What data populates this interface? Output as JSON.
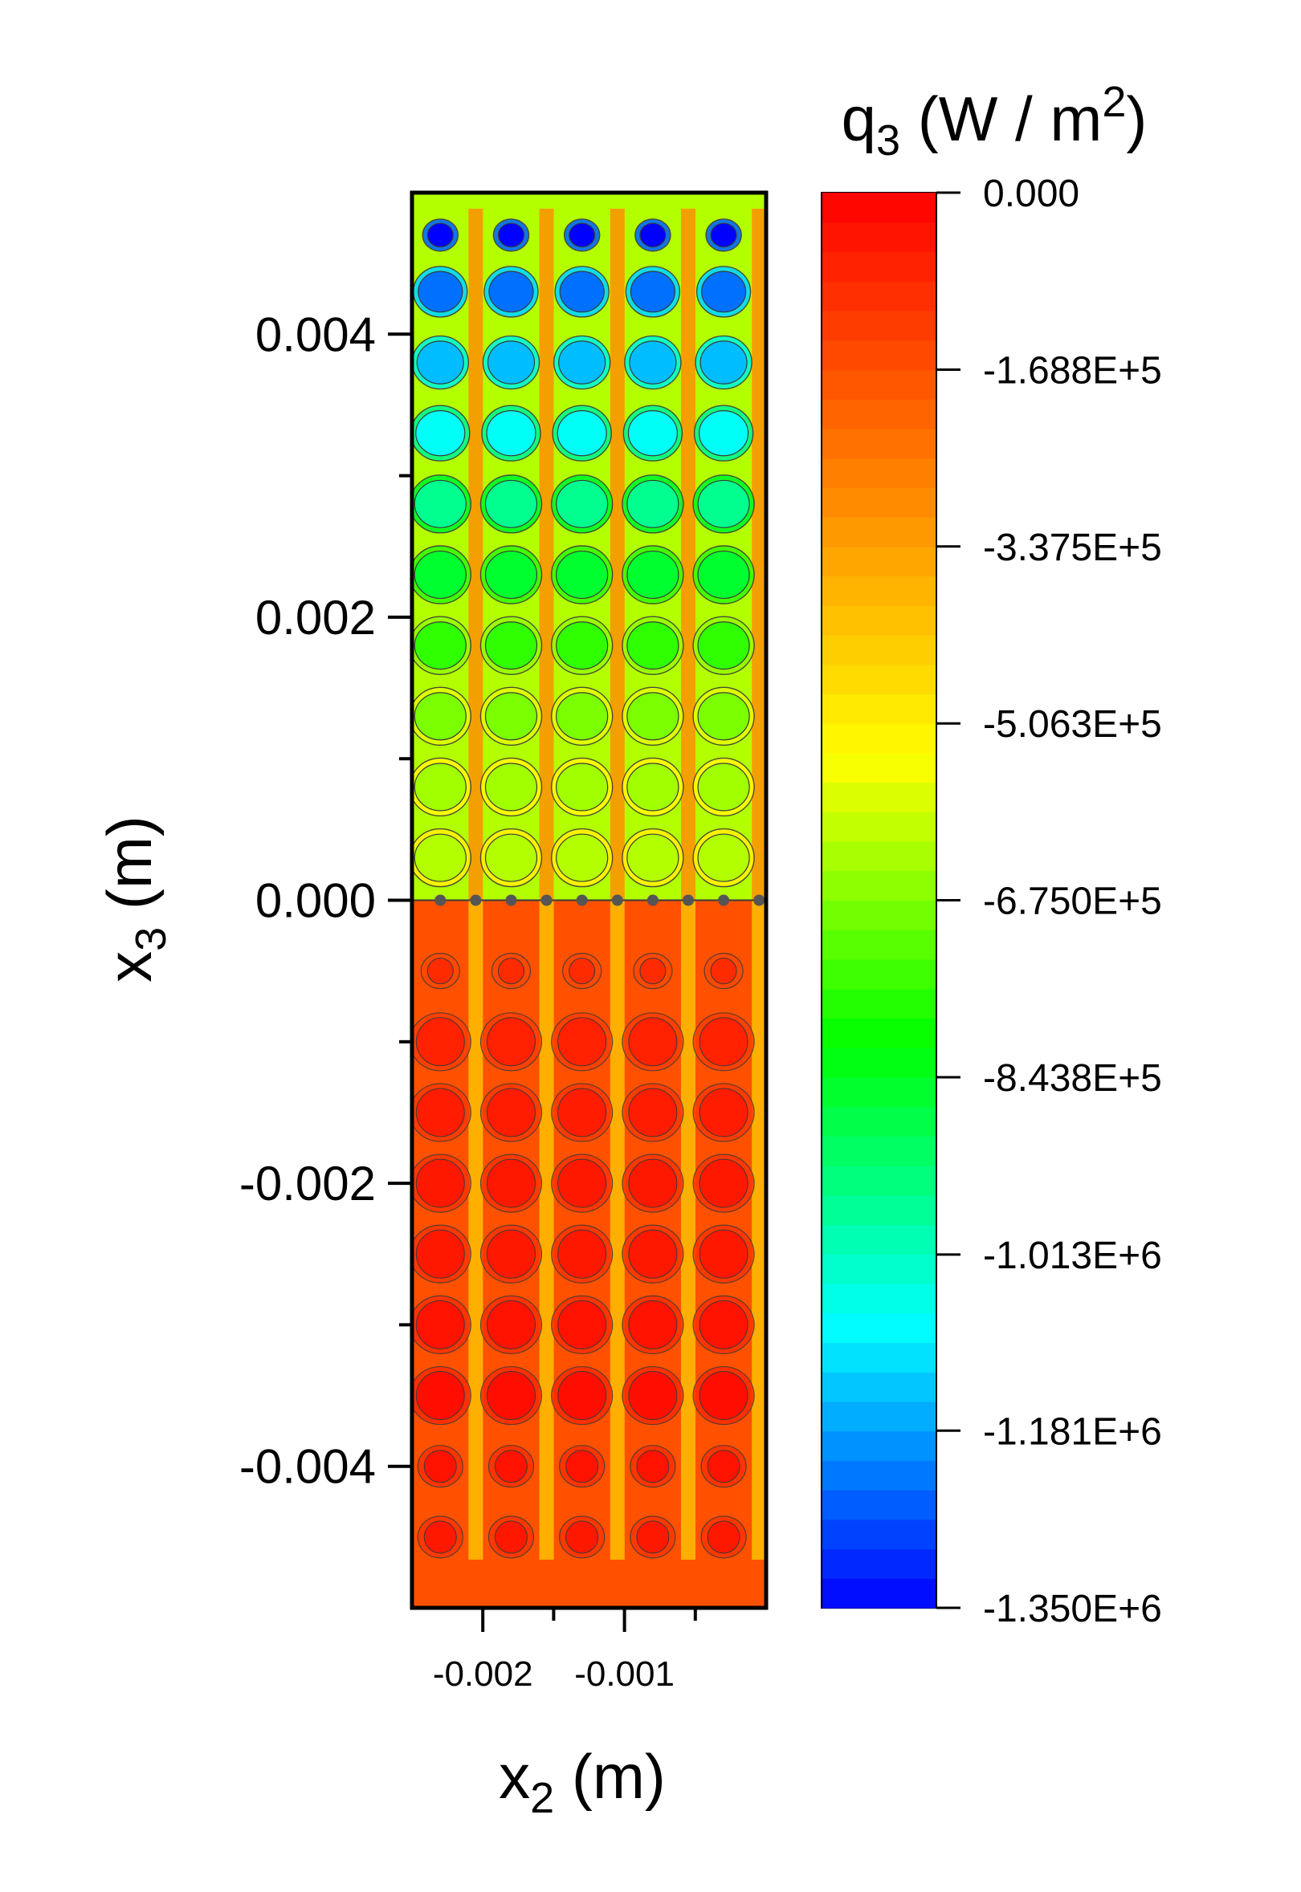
{
  "chart_data": {
    "type": "heatmap",
    "title": "",
    "colorbar": {
      "label": "q",
      "label_sub": "3",
      "label_unit_prefix": " (W / m",
      "label_unit_sup": "2",
      "label_unit_suffix": ")",
      "min": -1350000,
      "max": 0,
      "ticks": [
        {
          "value": 0,
          "label": "0.000"
        },
        {
          "value": -168800,
          "label": "-1.688E+5"
        },
        {
          "value": -337500,
          "label": "-3.375E+5"
        },
        {
          "value": -506300,
          "label": "-5.063E+5"
        },
        {
          "value": -675000,
          "label": "-6.750E+5"
        },
        {
          "value": -843800,
          "label": "-8.438E+5"
        },
        {
          "value": -1013000,
          "label": "-1.013E+6"
        },
        {
          "value": -1181000,
          "label": "-1.181E+6"
        },
        {
          "value": -1350000,
          "label": "-1.350E+6"
        }
      ],
      "colors": [
        "#0000ff",
        "#00ffff",
        "#00ff00",
        "#ffff00",
        "#ff8000",
        "#ff0000"
      ]
    },
    "x_axis": {
      "label": "x",
      "label_sub": "2",
      "label_unit": " (m)",
      "range": [
        -0.0025,
        0
      ],
      "major_ticks": [
        {
          "value": -0.002,
          "label": "-0.002"
        },
        {
          "value": -0.001,
          "label": "-0.001"
        }
      ],
      "minor_ticks": [
        -0.0015,
        -0.0005
      ]
    },
    "y_axis": {
      "label": "x",
      "label_sub": "3",
      "label_unit": " (m)",
      "range": [
        -0.005,
        0.005
      ],
      "major_ticks": [
        {
          "value": 0.004,
          "label": "0.004"
        },
        {
          "value": 0.002,
          "label": "0.002"
        },
        {
          "value": 0.0,
          "label": "0.000"
        },
        {
          "value": -0.002,
          "label": "-0.002"
        },
        {
          "value": -0.004,
          "label": "-0.004"
        }
      ],
      "minor_ticks": [
        0.003,
        0.001,
        -0.001,
        -0.003
      ]
    },
    "field": {
      "interface_x3": 0,
      "hotspot_columns_x2": [
        -0.0023,
        -0.0018,
        -0.0013,
        -0.0008,
        -0.0003
      ],
      "upper_rows_x3": [
        0.0047,
        0.0043,
        0.0038,
        0.0033,
        0.0028,
        0.0023,
        0.0018,
        0.0013,
        0.0008,
        0.0003
      ],
      "upper_row_values": [
        -1350000,
        -1230000,
        -1150000,
        -1070000,
        -960000,
        -860000,
        -760000,
        -680000,
        -640000,
        -620000
      ],
      "lower_rows_x3": [
        -0.0005,
        -0.001,
        -0.0015,
        -0.002,
        -0.0025,
        -0.003,
        -0.0035,
        -0.004,
        -0.0045
      ],
      "lower_row_values": [
        -90000,
        -70000,
        -60000,
        -50000,
        -50000,
        -40000,
        -30000,
        -40000,
        -50000
      ],
      "upper_background": -620000,
      "lower_background": -170000,
      "bridge_value": -300000
    }
  }
}
